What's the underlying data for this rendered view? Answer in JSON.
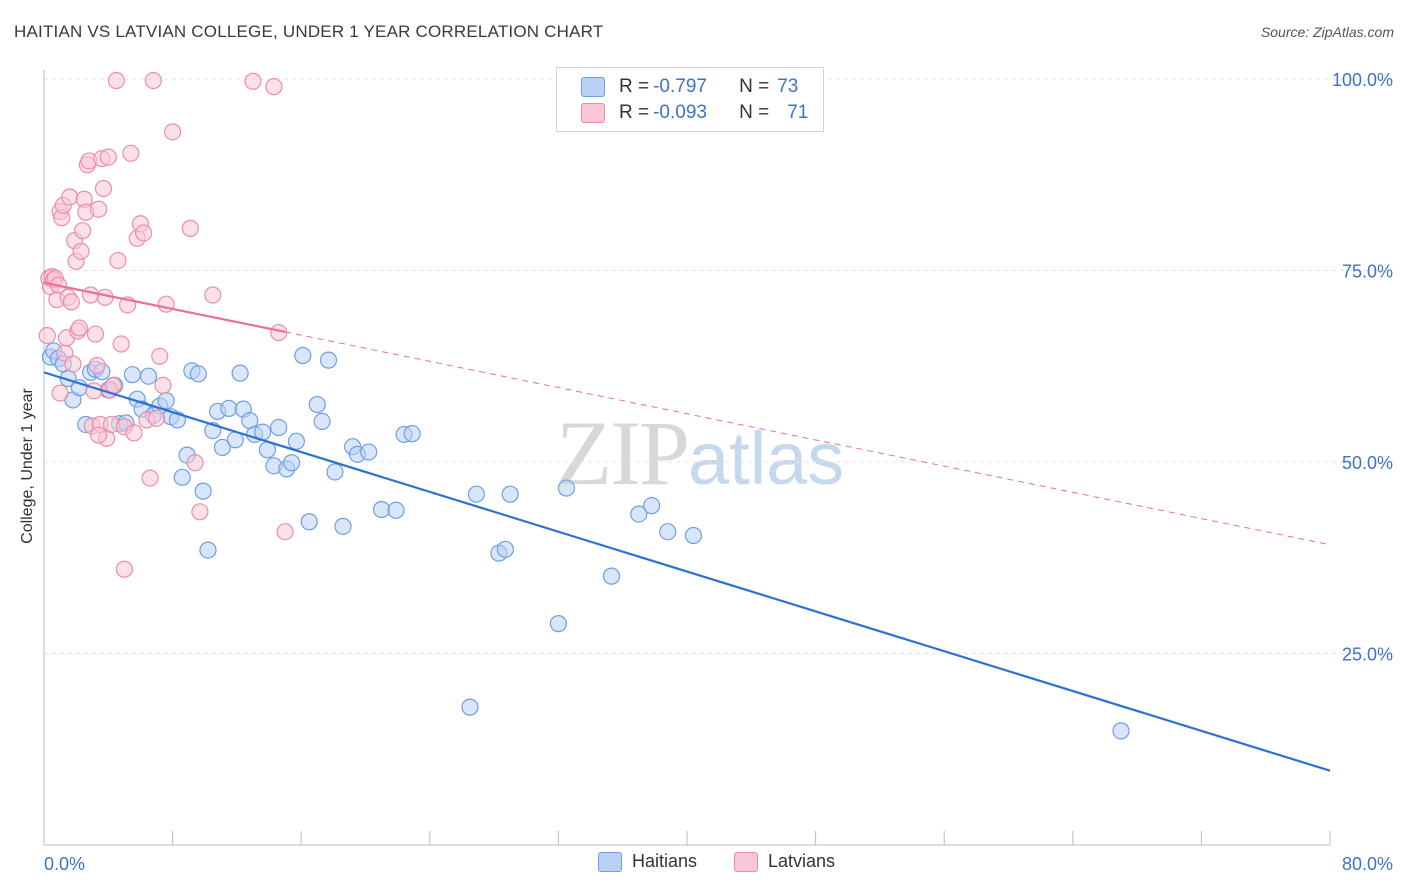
{
  "title": "HAITIAN VS LATVIAN COLLEGE, UNDER 1 YEAR CORRELATION CHART",
  "source": "Source: ZipAtlas.com",
  "watermark": {
    "zip": "ZIP",
    "atlas": "atlas"
  },
  "legend": {
    "rows": [
      {
        "r_label": "R = ",
        "r_value": "-0.797",
        "n_label": "N = ",
        "n_value": "73"
      },
      {
        "r_label": "R = ",
        "r_value": "-0.093",
        "n_label": "N = ",
        "n_value": "71"
      }
    ]
  },
  "chart_data": {
    "type": "scatter",
    "title": "HAITIAN VS LATVIAN COLLEGE, UNDER 1 YEAR CORRELATION CHART",
    "xlabel": "",
    "ylabel": "College, Under 1 year",
    "xlim": [
      0,
      80
    ],
    "ylim": [
      0,
      100
    ],
    "x_tick_labels": [
      "0.0%",
      "80.0%"
    ],
    "y_ticks": [
      25,
      50,
      75,
      100
    ],
    "y_tick_labels": [
      "25.0%",
      "50.0%",
      "75.0%",
      "100.0%"
    ],
    "grid": true,
    "legend_position": "top-center",
    "colors": {
      "haitians_fill": "#b9d1f4",
      "haitians_stroke": "#6f9ee6",
      "haitians_line": "#2d72d2",
      "latvians_fill": "#f9c6d6",
      "latvians_stroke": "#ea8eab",
      "latvians_line": "#e8709a",
      "grid": "#e4e4e4",
      "tick_label": "#3d73c4"
    },
    "series": [
      {
        "name": "Haitians",
        "r": -0.797,
        "n": 73,
        "trend": {
          "x": [
            0,
            80
          ],
          "y": [
            61.7,
            9.7
          ]
        },
        "points": [
          [
            0.4,
            63.7
          ],
          [
            0.6,
            64.5
          ],
          [
            0.9,
            63.5
          ],
          [
            1.2,
            62.8
          ],
          [
            1.5,
            60.9
          ],
          [
            1.8,
            58.1
          ],
          [
            2.2,
            59.7
          ],
          [
            2.6,
            54.9
          ],
          [
            2.9,
            61.7
          ],
          [
            3.2,
            62.1
          ],
          [
            3.6,
            61.8
          ],
          [
            4.0,
            59.4
          ],
          [
            4.4,
            60.0
          ],
          [
            4.7,
            55.0
          ],
          [
            5.1,
            55.1
          ],
          [
            5.5,
            61.4
          ],
          [
            5.8,
            58.2
          ],
          [
            6.1,
            56.9
          ],
          [
            6.5,
            61.2
          ],
          [
            6.8,
            56.1
          ],
          [
            7.2,
            57.3
          ],
          [
            7.6,
            58.0
          ],
          [
            7.9,
            55.9
          ],
          [
            8.3,
            55.5
          ],
          [
            8.6,
            48.0
          ],
          [
            8.9,
            50.9
          ],
          [
            9.2,
            61.9
          ],
          [
            9.6,
            61.5
          ],
          [
            9.9,
            46.2
          ],
          [
            10.2,
            38.5
          ],
          [
            10.5,
            54.1
          ],
          [
            10.8,
            56.6
          ],
          [
            11.1,
            51.9
          ],
          [
            11.5,
            57.0
          ],
          [
            11.9,
            52.9
          ],
          [
            12.2,
            61.6
          ],
          [
            12.4,
            56.9
          ],
          [
            12.8,
            55.4
          ],
          [
            13.1,
            53.6
          ],
          [
            13.6,
            53.9
          ],
          [
            13.9,
            51.6
          ],
          [
            14.3,
            49.5
          ],
          [
            14.6,
            54.5
          ],
          [
            15.1,
            49.1
          ],
          [
            15.4,
            49.9
          ],
          [
            15.7,
            52.7
          ],
          [
            16.1,
            63.9
          ],
          [
            16.5,
            42.2
          ],
          [
            17.0,
            57.5
          ],
          [
            17.3,
            55.3
          ],
          [
            17.7,
            63.3
          ],
          [
            18.1,
            48.7
          ],
          [
            18.6,
            41.6
          ],
          [
            19.2,
            52.0
          ],
          [
            19.5,
            51.0
          ],
          [
            20.2,
            51.3
          ],
          [
            21.0,
            43.8
          ],
          [
            21.9,
            43.7
          ],
          [
            22.4,
            53.6
          ],
          [
            22.9,
            53.7
          ],
          [
            26.5,
            18.0
          ],
          [
            26.9,
            45.8
          ],
          [
            28.3,
            38.1
          ],
          [
            28.7,
            38.6
          ],
          [
            29.0,
            45.8
          ],
          [
            32.0,
            28.9
          ],
          [
            32.5,
            46.6
          ],
          [
            35.3,
            35.1
          ],
          [
            37.0,
            43.2
          ],
          [
            37.8,
            44.3
          ],
          [
            38.8,
            40.9
          ],
          [
            40.4,
            40.4
          ],
          [
            67.0,
            14.9
          ]
        ]
      },
      {
        "name": "Latvians",
        "r": -0.093,
        "n": 71,
        "trend": {
          "x": [
            0,
            80
          ],
          "y": [
            73.4,
            39.2
          ]
        },
        "trend_solid_until_x": 15.0,
        "points": [
          [
            0.2,
            66.5
          ],
          [
            0.3,
            74.0
          ],
          [
            0.4,
            72.9
          ],
          [
            0.5,
            74.2
          ],
          [
            0.6,
            73.8
          ],
          [
            0.7,
            74.0
          ],
          [
            0.8,
            71.2
          ],
          [
            0.9,
            73.1
          ],
          [
            1.0,
            82.7
          ],
          [
            1.1,
            81.9
          ],
          [
            1.2,
            83.5
          ],
          [
            1.3,
            64.2
          ],
          [
            1.4,
            66.2
          ],
          [
            1.5,
            71.5
          ],
          [
            1.6,
            84.6
          ],
          [
            1.7,
            70.9
          ],
          [
            1.8,
            62.8
          ],
          [
            1.9,
            78.9
          ],
          [
            2.0,
            76.2
          ],
          [
            2.1,
            67.1
          ],
          [
            2.2,
            67.5
          ],
          [
            2.3,
            77.5
          ],
          [
            2.4,
            80.2
          ],
          [
            2.5,
            84.3
          ],
          [
            2.6,
            82.6
          ],
          [
            2.7,
            88.8
          ],
          [
            2.8,
            89.3
          ],
          [
            3.0,
            54.7
          ],
          [
            3.1,
            59.3
          ],
          [
            3.2,
            66.7
          ],
          [
            3.3,
            62.6
          ],
          [
            3.4,
            83.0
          ],
          [
            3.5,
            54.9
          ],
          [
            3.6,
            89.6
          ],
          [
            3.7,
            85.7
          ],
          [
            3.8,
            71.5
          ],
          [
            3.9,
            53.1
          ],
          [
            4.0,
            89.8
          ],
          [
            4.1,
            59.4
          ],
          [
            4.2,
            54.9
          ],
          [
            4.3,
            60.0
          ],
          [
            4.5,
            99.8
          ],
          [
            4.6,
            76.3
          ],
          [
            4.8,
            65.4
          ],
          [
            5.0,
            54.6
          ],
          [
            5.2,
            70.5
          ],
          [
            5.4,
            90.3
          ],
          [
            5.6,
            53.8
          ],
          [
            5.8,
            79.2
          ],
          [
            6.0,
            81.1
          ],
          [
            6.2,
            79.9
          ],
          [
            6.4,
            55.5
          ],
          [
            6.6,
            47.9
          ],
          [
            6.8,
            99.8
          ],
          [
            7.0,
            55.7
          ],
          [
            7.2,
            63.8
          ],
          [
            7.4,
            60.0
          ],
          [
            7.6,
            70.6
          ],
          [
            8.0,
            93.1
          ],
          [
            9.1,
            80.5
          ],
          [
            9.4,
            49.9
          ],
          [
            9.7,
            43.5
          ],
          [
            10.5,
            71.8
          ],
          [
            13.0,
            99.7
          ],
          [
            14.3,
            99.0
          ],
          [
            14.6,
            66.9
          ],
          [
            15.0,
            40.9
          ],
          [
            5.0,
            36.0
          ],
          [
            3.4,
            53.5
          ],
          [
            2.9,
            71.8
          ],
          [
            1.0,
            59.0
          ]
        ]
      }
    ]
  },
  "bottom_legend": {
    "haitians": "Haitians",
    "latvians": "Latvians"
  }
}
